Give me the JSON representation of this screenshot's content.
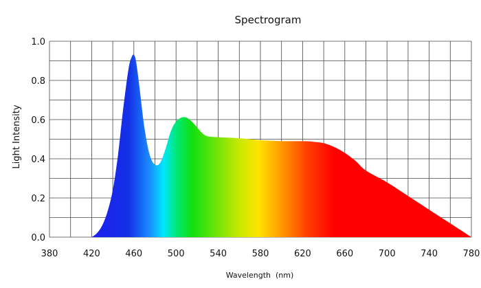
{
  "chart_data": {
    "type": "area",
    "title": "Spectrogram",
    "xlabel": "Wavelength  (nm)",
    "ylabel": "Light Intensity",
    "xlim": [
      380,
      780
    ],
    "ylim": [
      0,
      1.0
    ],
    "x_ticks": [
      "380",
      "420",
      "460",
      "500",
      "540",
      "580",
      "620",
      "660",
      "700",
      "740",
      "780"
    ],
    "y_ticks": [
      "0.0",
      "0.2",
      "0.4",
      "0.6",
      "0.8",
      "1.0"
    ],
    "grid": true,
    "series": [
      {
        "x": [
          420,
          425,
          430,
          435,
          440,
          445,
          450,
          455,
          458,
          460,
          462,
          465,
          470,
          475,
          480,
          485,
          490,
          495,
          500,
          505,
          510,
          515,
          520,
          525,
          530,
          540,
          560,
          580,
          600,
          620,
          630,
          640,
          650,
          660,
          670,
          680,
          700,
          720,
          740,
          760,
          780
        ],
        "y": [
          0.0,
          0.02,
          0.06,
          0.13,
          0.24,
          0.42,
          0.66,
          0.86,
          0.92,
          0.93,
          0.9,
          0.78,
          0.56,
          0.42,
          0.37,
          0.38,
          0.45,
          0.54,
          0.59,
          0.61,
          0.61,
          0.59,
          0.56,
          0.53,
          0.515,
          0.51,
          0.505,
          0.495,
          0.49,
          0.49,
          0.487,
          0.48,
          0.46,
          0.43,
          0.39,
          0.34,
          0.28,
          0.21,
          0.14,
          0.07,
          0.0
        ]
      }
    ],
    "gradient_colors": [
      {
        "nm": 420,
        "color": "#1e1ef0"
      },
      {
        "nm": 455,
        "color": "#1430e6"
      },
      {
        "nm": 475,
        "color": "#1a8cff"
      },
      {
        "nm": 488,
        "color": "#00e6ff"
      },
      {
        "nm": 500,
        "color": "#00e87a"
      },
      {
        "nm": 515,
        "color": "#10e010"
      },
      {
        "nm": 560,
        "color": "#c8e800"
      },
      {
        "nm": 578,
        "color": "#ffe400"
      },
      {
        "nm": 600,
        "color": "#ff9a00"
      },
      {
        "nm": 625,
        "color": "#ff3c00"
      },
      {
        "nm": 650,
        "color": "#ff0000"
      },
      {
        "nm": 780,
        "color": "#ff0000"
      }
    ]
  }
}
